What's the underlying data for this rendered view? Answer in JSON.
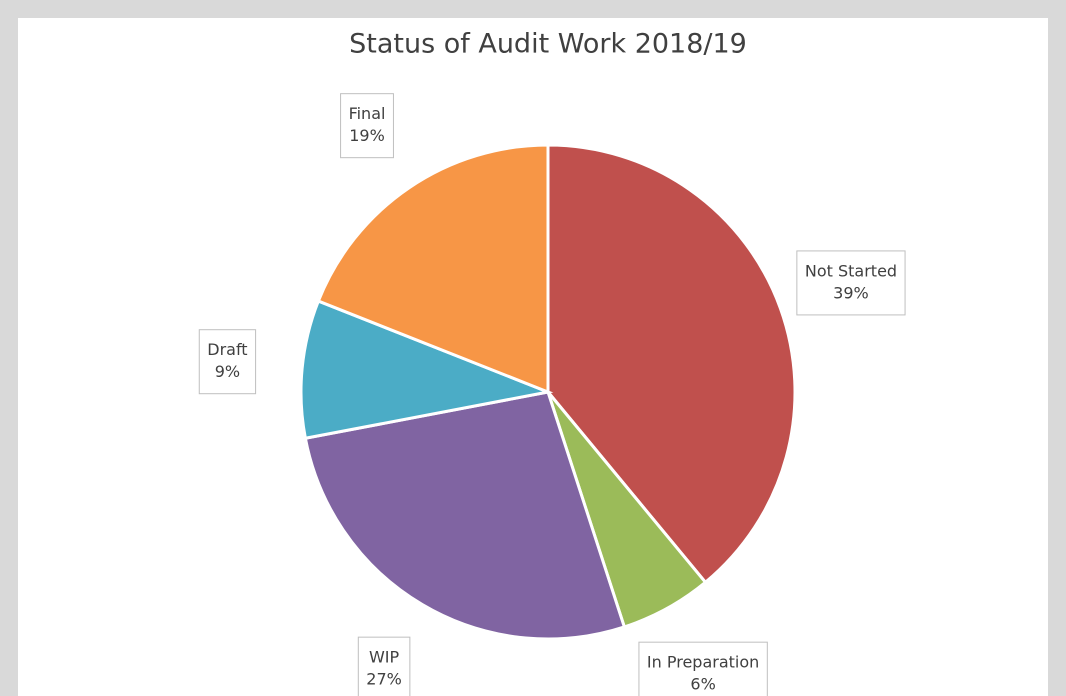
{
  "chart_data": {
    "type": "pie",
    "title": "Status of Audit Work 2018/19",
    "categories": [
      "Not Started",
      "In Preparation",
      "WIP",
      "Draft",
      "Final"
    ],
    "values": [
      39,
      6,
      27,
      9,
      19
    ],
    "value_labels": [
      "39%",
      "6%",
      "27%",
      "9%",
      "19%"
    ],
    "colors": [
      "#c0504d",
      "#9bbb59",
      "#8064a2",
      "#4bacc6",
      "#f79646"
    ]
  }
}
